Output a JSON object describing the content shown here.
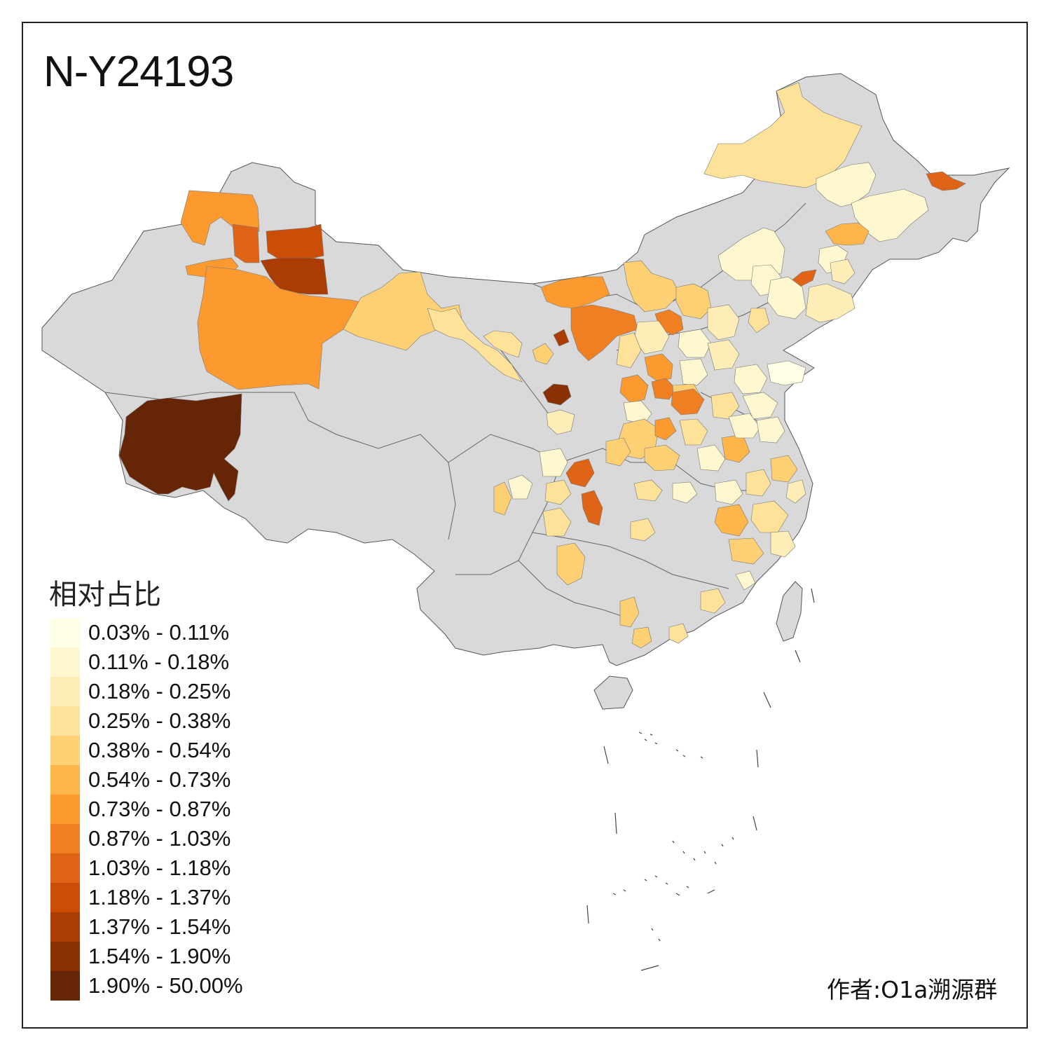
{
  "title": "N-Y24193",
  "legend": {
    "title": "相对占比",
    "items": [
      {
        "label": "0.03% - 0.11%",
        "color": "#ffffe5"
      },
      {
        "label": "0.11% - 0.18%",
        "color": "#fff7cf"
      },
      {
        "label": "0.18% - 0.25%",
        "color": "#feedb6"
      },
      {
        "label": "0.25% - 0.38%",
        "color": "#fee29a"
      },
      {
        "label": "0.38% - 0.54%",
        "color": "#fed074"
      },
      {
        "label": "0.54% - 0.73%",
        "color": "#feb54a"
      },
      {
        "label": "0.73% - 0.87%",
        "color": "#fc9a30"
      },
      {
        "label": "0.87% - 1.03%",
        "color": "#f07f22"
      },
      {
        "label": "1.03% - 1.18%",
        "color": "#e06416"
      },
      {
        "label": "1.18% - 1.37%",
        "color": "#ca4d08"
      },
      {
        "label": "1.37% - 1.54%",
        "color": "#aa3c04"
      },
      {
        "label": "1.54% - 1.90%",
        "color": "#893005"
      },
      {
        "label": "1.90% - 50.00%",
        "color": "#662506"
      }
    ]
  },
  "author": "作者:O1a溯源群",
  "base_color": "#d9d9d9"
}
